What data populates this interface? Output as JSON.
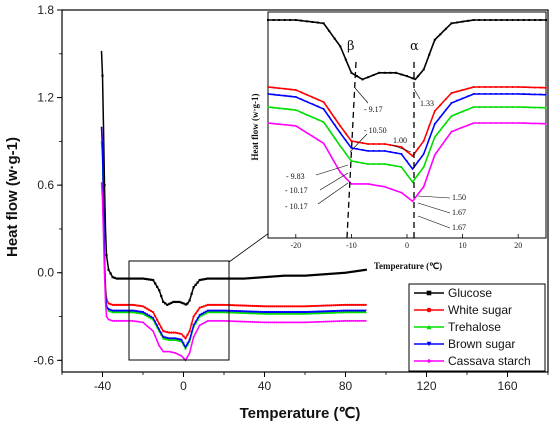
{
  "chart_data": {
    "type": "line",
    "xlabel": "Temperature (℃)",
    "ylabel": "Heat flow (w·g-1)",
    "xlim": [
      -60,
      180
    ],
    "ylim": [
      -0.68,
      1.8
    ],
    "x_ticks": [
      "-40",
      "0",
      "40",
      "80",
      "120",
      "160"
    ],
    "y_ticks": [
      "-0.6",
      "0.0",
      "0.6",
      "1.2",
      "1.8"
    ],
    "legend": {
      "position": "bottom-right",
      "labels": [
        "Glucose",
        "White sugar",
        "Trehalose",
        "Brown sugar",
        "Cassava starch"
      ]
    },
    "series": [
      {
        "name": "Glucose",
        "color": "#000000",
        "marker": "square",
        "points": [
          [
            -40.5,
            1.52
          ],
          [
            -40,
            1.35
          ],
          [
            -39.5,
            1.0
          ],
          [
            -39,
            0.6
          ],
          [
            -38.5,
            0.3
          ],
          [
            -38,
            0.12
          ],
          [
            -37,
            0.02
          ],
          [
            -35,
            -0.03
          ],
          [
            -33,
            -0.04
          ],
          [
            -25,
            -0.04
          ],
          [
            -20,
            -0.04
          ],
          [
            -15,
            -0.05
          ],
          [
            -12,
            -0.12
          ],
          [
            -10,
            -0.2
          ],
          [
            -8,
            -0.22
          ],
          [
            -5,
            -0.2
          ],
          [
            -2,
            -0.2
          ],
          [
            0,
            -0.21
          ],
          [
            1.5,
            -0.22
          ],
          [
            3,
            -0.19
          ],
          [
            5,
            -0.1
          ],
          [
            8,
            -0.05
          ],
          [
            12,
            -0.04
          ],
          [
            20,
            -0.04
          ],
          [
            30,
            -0.04
          ],
          [
            40,
            -0.03
          ],
          [
            50,
            -0.02
          ],
          [
            60,
            -0.02
          ],
          [
            70,
            -0.01
          ],
          [
            80,
            0.0
          ],
          [
            90,
            0.02
          ]
        ]
      },
      {
        "name": "White sugar",
        "color": "#ff0000",
        "marker": "circle",
        "points": [
          [
            -40.5,
            1.0
          ],
          [
            -40,
            0.9
          ],
          [
            -39.5,
            0.5
          ],
          [
            -39,
            0.1
          ],
          [
            -38.5,
            -0.1
          ],
          [
            -38,
            -0.18
          ],
          [
            -37,
            -0.21
          ],
          [
            -35,
            -0.22
          ],
          [
            -25,
            -0.22
          ],
          [
            -20,
            -0.23
          ],
          [
            -15,
            -0.27
          ],
          [
            -12,
            -0.35
          ],
          [
            -10,
            -0.4
          ],
          [
            -7,
            -0.41
          ],
          [
            -4,
            -0.41
          ],
          [
            -1,
            -0.42
          ],
          [
            1,
            -0.45
          ],
          [
            3,
            -0.4
          ],
          [
            5,
            -0.3
          ],
          [
            8,
            -0.24
          ],
          [
            12,
            -0.22
          ],
          [
            20,
            -0.22
          ],
          [
            40,
            -0.23
          ],
          [
            60,
            -0.23
          ],
          [
            80,
            -0.22
          ],
          [
            90,
            -0.22
          ]
        ]
      },
      {
        "name": "Trehalose",
        "color": "#00dd00",
        "marker": "triangle",
        "points": [
          [
            -40.5,
            0.9
          ],
          [
            -40,
            0.8
          ],
          [
            -39.5,
            0.45
          ],
          [
            -39,
            0.05
          ],
          [
            -38.5,
            -0.15
          ],
          [
            -38,
            -0.24
          ],
          [
            -37,
            -0.26
          ],
          [
            -35,
            -0.27
          ],
          [
            -25,
            -0.27
          ],
          [
            -20,
            -0.28
          ],
          [
            -15,
            -0.32
          ],
          [
            -12,
            -0.4
          ],
          [
            -10,
            -0.45
          ],
          [
            -7,
            -0.46
          ],
          [
            -4,
            -0.46
          ],
          [
            -1,
            -0.47
          ],
          [
            1,
            -0.52
          ],
          [
            3,
            -0.47
          ],
          [
            5,
            -0.37
          ],
          [
            8,
            -0.3
          ],
          [
            12,
            -0.27
          ],
          [
            20,
            -0.27
          ],
          [
            40,
            -0.28
          ],
          [
            60,
            -0.28
          ],
          [
            80,
            -0.27
          ],
          [
            90,
            -0.27
          ]
        ]
      },
      {
        "name": "Brown sugar",
        "color": "#0000ff",
        "marker": "triangle-down",
        "points": [
          [
            -40.5,
            1.0
          ],
          [
            -40,
            0.85
          ],
          [
            -39.5,
            0.5
          ],
          [
            -39,
            0.08
          ],
          [
            -38.5,
            -0.14
          ],
          [
            -38,
            -0.23
          ],
          [
            -37,
            -0.25
          ],
          [
            -35,
            -0.26
          ],
          [
            -25,
            -0.26
          ],
          [
            -20,
            -0.27
          ],
          [
            -15,
            -0.31
          ],
          [
            -12,
            -0.39
          ],
          [
            -10,
            -0.44
          ],
          [
            -7,
            -0.45
          ],
          [
            -4,
            -0.45
          ],
          [
            -1,
            -0.46
          ],
          [
            1,
            -0.51
          ],
          [
            3,
            -0.46
          ],
          [
            5,
            -0.36
          ],
          [
            8,
            -0.29
          ],
          [
            12,
            -0.26
          ],
          [
            20,
            -0.26
          ],
          [
            40,
            -0.27
          ],
          [
            60,
            -0.27
          ],
          [
            80,
            -0.26
          ],
          [
            90,
            -0.26
          ]
        ]
      },
      {
        "name": "Cassava starch",
        "color": "#ff00ff",
        "marker": "diamond",
        "points": [
          [
            -40.5,
            0.62
          ],
          [
            -40,
            0.5
          ],
          [
            -39.5,
            0.25
          ],
          [
            -39,
            0.0
          ],
          [
            -38.5,
            -0.2
          ],
          [
            -38,
            -0.3
          ],
          [
            -37,
            -0.32
          ],
          [
            -35,
            -0.33
          ],
          [
            -25,
            -0.33
          ],
          [
            -20,
            -0.34
          ],
          [
            -15,
            -0.4
          ],
          [
            -12,
            -0.5
          ],
          [
            -10,
            -0.54
          ],
          [
            -7,
            -0.54
          ],
          [
            -4,
            -0.55
          ],
          [
            -1,
            -0.57
          ],
          [
            1,
            -0.6
          ],
          [
            3,
            -0.55
          ],
          [
            5,
            -0.44
          ],
          [
            8,
            -0.36
          ],
          [
            12,
            -0.33
          ],
          [
            20,
            -0.33
          ],
          [
            40,
            -0.34
          ],
          [
            60,
            -0.34
          ],
          [
            80,
            -0.33
          ],
          [
            90,
            -0.33
          ]
        ]
      }
    ],
    "inset": {
      "xlabel": "Temperature (℃)",
      "ylabel": "Heat flow (w·g-1)",
      "xlim": [
        -25,
        25
      ],
      "x_ticks": [
        "-20",
        "-10",
        "0",
        "10",
        "20"
      ],
      "markers": [
        {
          "label": "β",
          "x": -10
        },
        {
          "label": "α",
          "x": 1.5
        }
      ],
      "annotations": [
        "- 9.17",
        "1.33",
        "- 10.50",
        "1.00",
        "- 9.83",
        "- 10.17",
        "- 10.17",
        "1.50",
        "1.67",
        "1.67"
      ]
    }
  }
}
